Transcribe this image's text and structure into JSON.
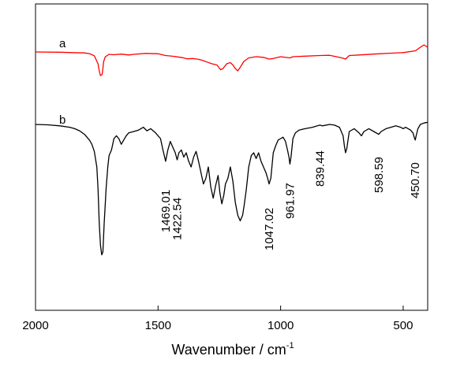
{
  "chart_data": {
    "type": "line",
    "xlabel": "Wavenumber / cm",
    "xlabel_superscript": "-1",
    "xlim": [
      2000,
      400
    ],
    "x_reversed": true,
    "x_ticks": [
      2000,
      1500,
      1000,
      500
    ],
    "y_ticks_shown": false,
    "grid": false,
    "series": [
      {
        "name": "a",
        "color": "#ff0000",
        "points": [
          [
            2000,
            0.0
          ],
          [
            1900,
            0.002
          ],
          [
            1850,
            0.005
          ],
          [
            1800,
            0.008
          ],
          [
            1780,
            0.014
          ],
          [
            1760,
            0.032
          ],
          [
            1745,
            0.1
          ],
          [
            1740,
            0.16
          ],
          [
            1735,
            0.2
          ],
          [
            1728,
            0.19
          ],
          [
            1722,
            0.08
          ],
          [
            1715,
            0.04
          ],
          [
            1700,
            0.02
          ],
          [
            1680,
            0.023
          ],
          [
            1650,
            0.018
          ],
          [
            1620,
            0.025
          ],
          [
            1600,
            0.02
          ],
          [
            1550,
            0.012
          ],
          [
            1500,
            0.015
          ],
          [
            1470,
            0.03
          ],
          [
            1440,
            0.036
          ],
          [
            1420,
            0.042
          ],
          [
            1400,
            0.048
          ],
          [
            1380,
            0.058
          ],
          [
            1360,
            0.055
          ],
          [
            1340,
            0.06
          ],
          [
            1320,
            0.07
          ],
          [
            1300,
            0.085
          ],
          [
            1280,
            0.1
          ],
          [
            1260,
            0.11
          ],
          [
            1245,
            0.15
          ],
          [
            1235,
            0.14
          ],
          [
            1220,
            0.1
          ],
          [
            1205,
            0.09
          ],
          [
            1195,
            0.11
          ],
          [
            1185,
            0.14
          ],
          [
            1175,
            0.16
          ],
          [
            1165,
            0.13
          ],
          [
            1150,
            0.08
          ],
          [
            1130,
            0.05
          ],
          [
            1100,
            0.04
          ],
          [
            1070,
            0.045
          ],
          [
            1048,
            0.06
          ],
          [
            1030,
            0.055
          ],
          [
            1000,
            0.04
          ],
          [
            962,
            0.05
          ],
          [
            950,
            0.04
          ],
          [
            900,
            0.035
          ],
          [
            840,
            0.03
          ],
          [
            800,
            0.028
          ],
          [
            750,
            0.05
          ],
          [
            735,
            0.06
          ],
          [
            720,
            0.03
          ],
          [
            680,
            0.025
          ],
          [
            600,
            0.015
          ],
          [
            550,
            0.01
          ],
          [
            500,
            0.005
          ],
          [
            450,
            -0.01
          ],
          [
            430,
            -0.04
          ],
          [
            415,
            -0.06
          ],
          [
            400,
            -0.04
          ]
        ]
      },
      {
        "name": "b",
        "color": "#000000",
        "points": [
          [
            2000,
            0.0
          ],
          [
            1950,
            0.003
          ],
          [
            1900,
            0.01
          ],
          [
            1860,
            0.02
          ],
          [
            1840,
            0.03
          ],
          [
            1820,
            0.045
          ],
          [
            1800,
            0.07
          ],
          [
            1790,
            0.09
          ],
          [
            1780,
            0.11
          ],
          [
            1770,
            0.14
          ],
          [
            1760,
            0.19
          ],
          [
            1750,
            0.3
          ],
          [
            1745,
            0.45
          ],
          [
            1740,
            0.7
          ],
          [
            1735,
            0.85
          ],
          [
            1730,
            0.92
          ],
          [
            1725,
            0.9
          ],
          [
            1720,
            0.7
          ],
          [
            1712,
            0.45
          ],
          [
            1705,
            0.3
          ],
          [
            1700,
            0.22
          ],
          [
            1690,
            0.18
          ],
          [
            1680,
            0.1
          ],
          [
            1670,
            0.08
          ],
          [
            1660,
            0.1
          ],
          [
            1650,
            0.14
          ],
          [
            1640,
            0.11
          ],
          [
            1630,
            0.08
          ],
          [
            1620,
            0.06
          ],
          [
            1600,
            0.05
          ],
          [
            1580,
            0.04
          ],
          [
            1560,
            0.02
          ],
          [
            1545,
            0.045
          ],
          [
            1530,
            0.03
          ],
          [
            1510,
            0.06
          ],
          [
            1490,
            0.1
          ],
          [
            1480,
            0.18
          ],
          [
            1469,
            0.26
          ],
          [
            1460,
            0.18
          ],
          [
            1450,
            0.12
          ],
          [
            1440,
            0.16
          ],
          [
            1430,
            0.2
          ],
          [
            1422,
            0.25
          ],
          [
            1415,
            0.2
          ],
          [
            1405,
            0.18
          ],
          [
            1395,
            0.23
          ],
          [
            1385,
            0.2
          ],
          [
            1375,
            0.26
          ],
          [
            1365,
            0.3
          ],
          [
            1355,
            0.23
          ],
          [
            1345,
            0.19
          ],
          [
            1335,
            0.26
          ],
          [
            1325,
            0.34
          ],
          [
            1315,
            0.42
          ],
          [
            1305,
            0.38
          ],
          [
            1295,
            0.3
          ],
          [
            1285,
            0.44
          ],
          [
            1275,
            0.52
          ],
          [
            1265,
            0.43
          ],
          [
            1255,
            0.36
          ],
          [
            1248,
            0.48
          ],
          [
            1240,
            0.56
          ],
          [
            1232,
            0.5
          ],
          [
            1225,
            0.42
          ],
          [
            1215,
            0.38
          ],
          [
            1205,
            0.3
          ],
          [
            1195,
            0.4
          ],
          [
            1185,
            0.55
          ],
          [
            1175,
            0.64
          ],
          [
            1165,
            0.68
          ],
          [
            1155,
            0.64
          ],
          [
            1148,
            0.56
          ],
          [
            1140,
            0.46
          ],
          [
            1130,
            0.3
          ],
          [
            1120,
            0.22
          ],
          [
            1110,
            0.2
          ],
          [
            1100,
            0.24
          ],
          [
            1090,
            0.2
          ],
          [
            1080,
            0.26
          ],
          [
            1070,
            0.3
          ],
          [
            1060,
            0.34
          ],
          [
            1053,
            0.38
          ],
          [
            1047,
            0.42
          ],
          [
            1040,
            0.38
          ],
          [
            1030,
            0.2
          ],
          [
            1020,
            0.15
          ],
          [
            1010,
            0.11
          ],
          [
            1000,
            0.1
          ],
          [
            990,
            0.09
          ],
          [
            980,
            0.12
          ],
          [
            972,
            0.18
          ],
          [
            966,
            0.23
          ],
          [
            962,
            0.28
          ],
          [
            957,
            0.22
          ],
          [
            950,
            0.1
          ],
          [
            940,
            0.06
          ],
          [
            925,
            0.04
          ],
          [
            900,
            0.03
          ],
          [
            870,
            0.02
          ],
          [
            850,
            0.01
          ],
          [
            840,
            0.005
          ],
          [
            830,
            0.01
          ],
          [
            800,
            0.0
          ],
          [
            780,
            0.005
          ],
          [
            760,
            0.02
          ],
          [
            745,
            0.08
          ],
          [
            740,
            0.15
          ],
          [
            735,
            0.2
          ],
          [
            730,
            0.17
          ],
          [
            720,
            0.05
          ],
          [
            700,
            0.03
          ],
          [
            680,
            0.06
          ],
          [
            670,
            0.08
          ],
          [
            660,
            0.05
          ],
          [
            640,
            0.03
          ],
          [
            620,
            0.05
          ],
          [
            600,
            0.07
          ],
          [
            590,
            0.05
          ],
          [
            570,
            0.03
          ],
          [
            550,
            0.02
          ],
          [
            530,
            0.01
          ],
          [
            510,
            0.02
          ],
          [
            500,
            0.03
          ],
          [
            490,
            0.02
          ],
          [
            470,
            0.04
          ],
          [
            460,
            0.06
          ],
          [
            455,
            0.09
          ],
          [
            451,
            0.11
          ],
          [
            447,
            0.08
          ],
          [
            440,
            0.03
          ],
          [
            430,
            0.0
          ],
          [
            415,
            -0.01
          ],
          [
            400,
            -0.015
          ]
        ]
      }
    ],
    "annotations": [
      {
        "text": "1469.01",
        "x": 1469
      },
      {
        "text": "1422.54",
        "x": 1422
      },
      {
        "text": "1047.02",
        "x": 1047
      },
      {
        "text": "961.97",
        "x": 962
      },
      {
        "text": "839.44",
        "x": 839
      },
      {
        "text": "598.59",
        "x": 599
      },
      {
        "text": "450.70",
        "x": 451
      }
    ]
  }
}
